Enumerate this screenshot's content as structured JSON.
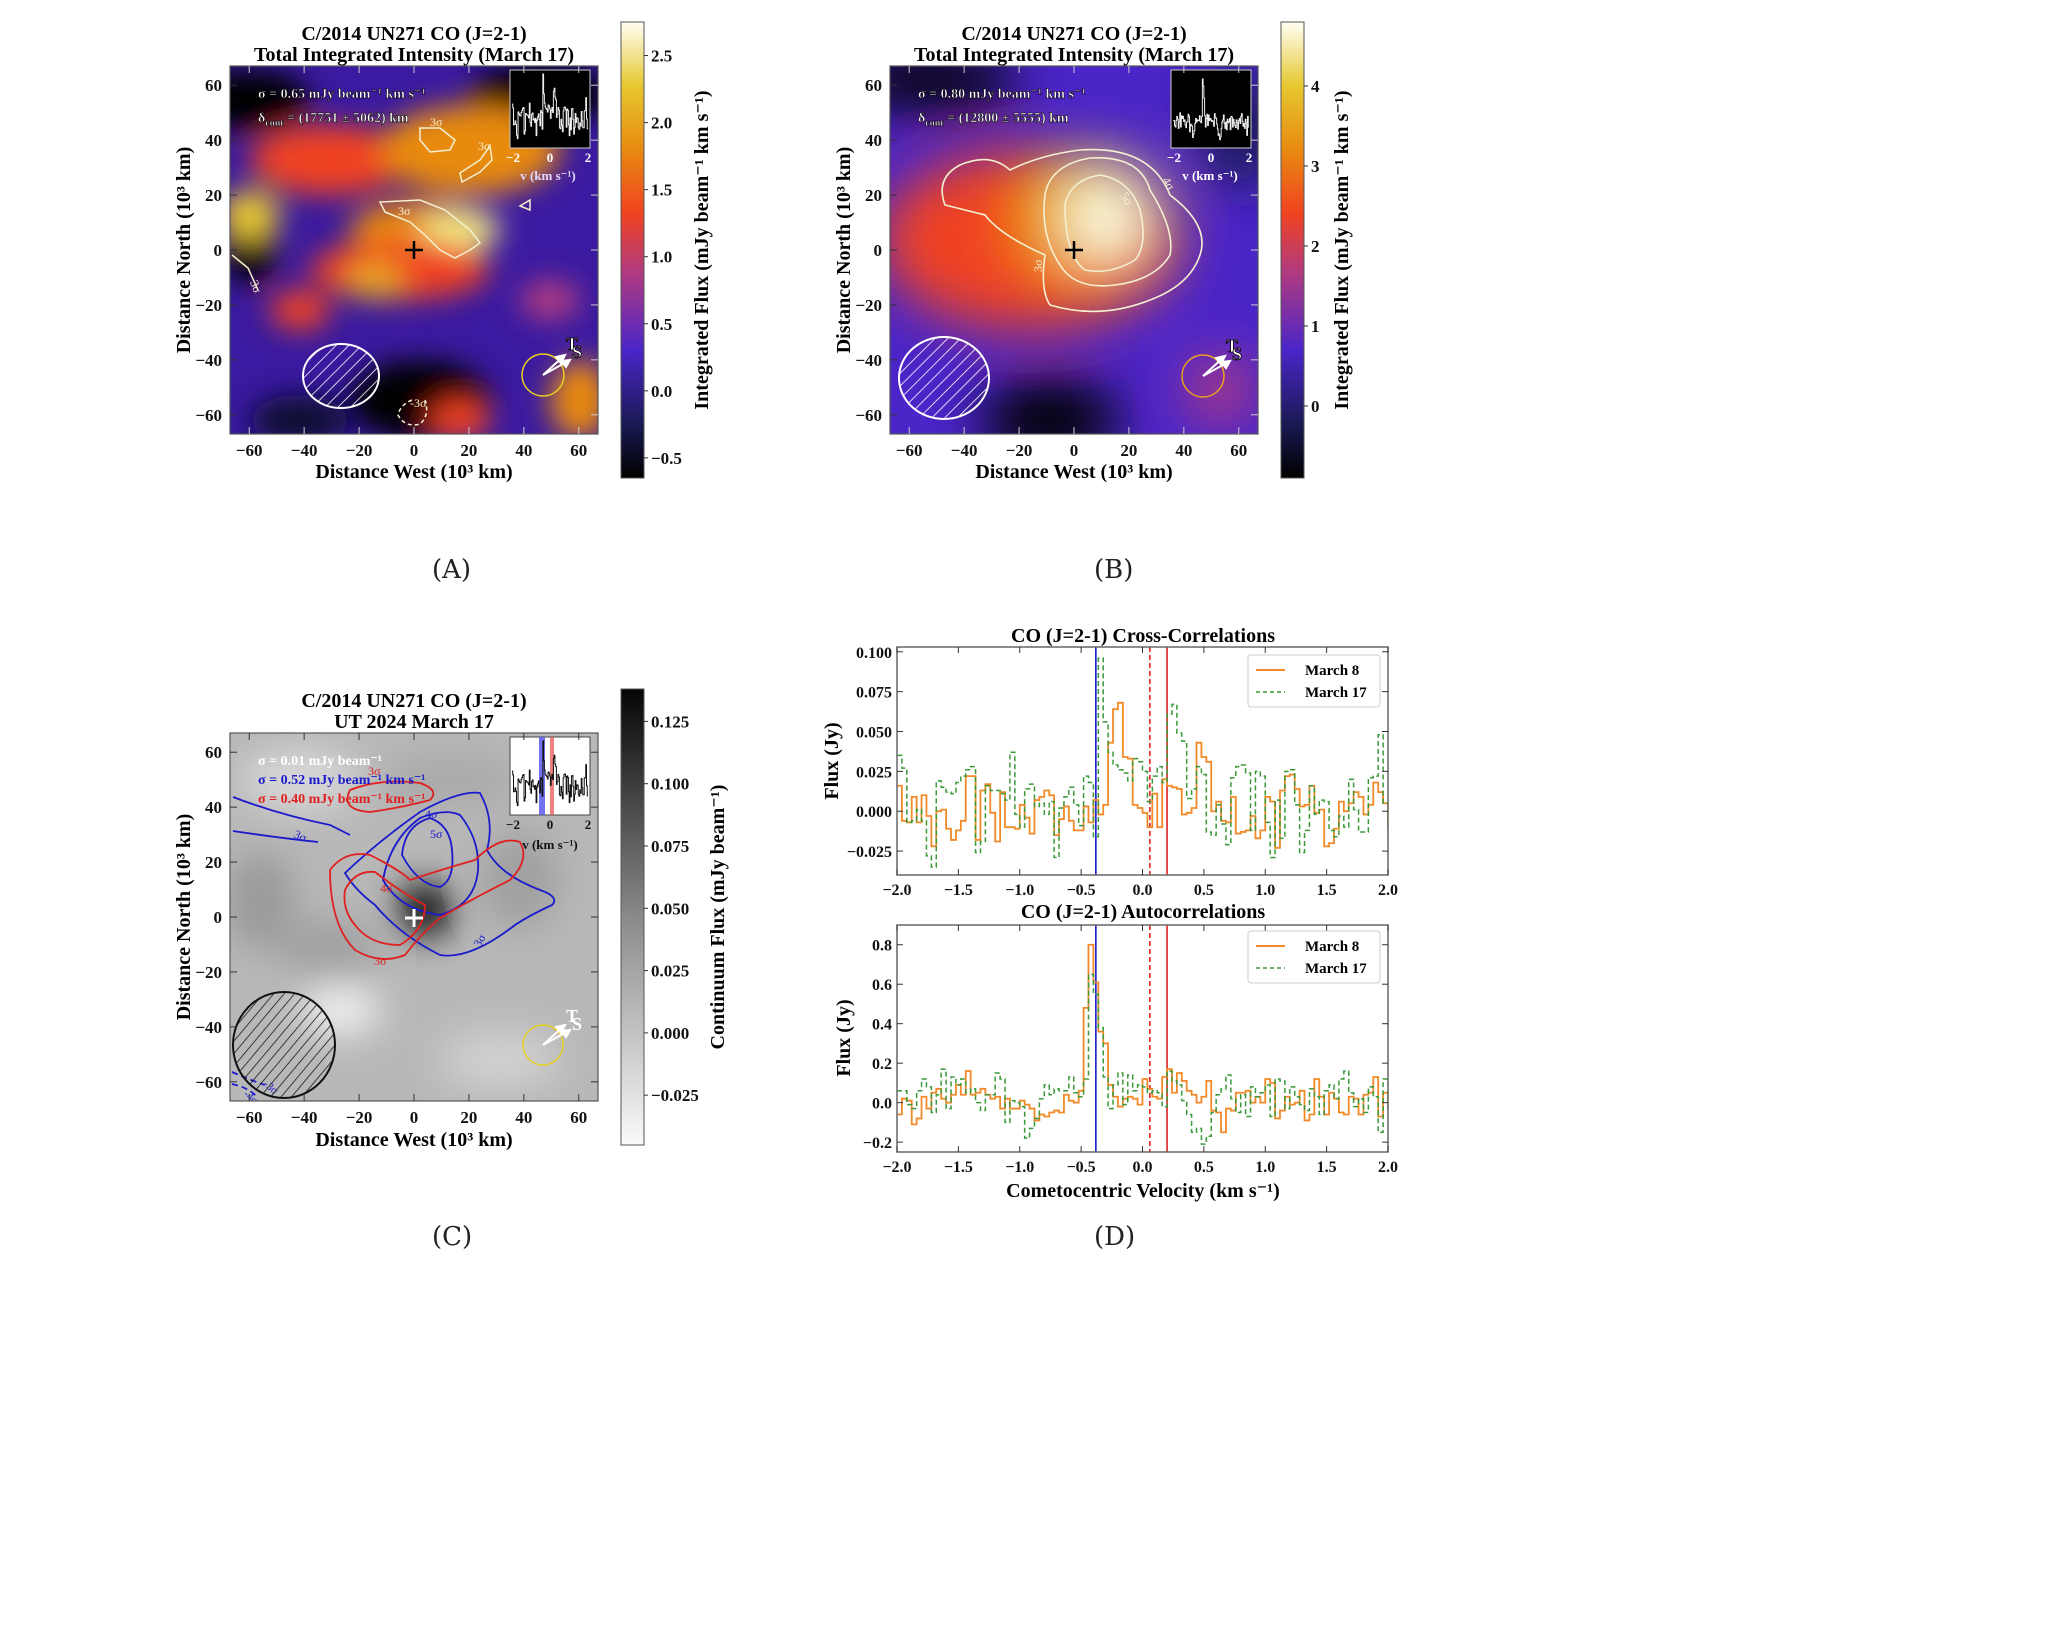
{
  "figure": {
    "captions": [
      "(A)",
      "(B)",
      "(C)",
      "(D)"
    ]
  },
  "panel_a": {
    "title_line1": "C/2014 UN271 CO (J=2-1)",
    "title_line2": "Total Integrated Intensity (March 17)",
    "sigma_text": "σ = 0.65 mJy beam⁻¹ km s⁻¹",
    "delta_text": "δcont = (17751 ± 5062) km",
    "delta_sym": "δ",
    "delta_sub": "cont",
    "delta_val": " = (17751 ± 5062) km",
    "xlabel": "Distance West (10³ km)",
    "ylabel": "Distance North (10³ km)",
    "xticks": [
      "−60",
      "−40",
      "−20",
      "0",
      "20",
      "40",
      "60"
    ],
    "yticks": [
      "60",
      "40",
      "20",
      "0",
      "−20",
      "−40",
      "−60"
    ],
    "colorbar_label": "Integrated Flux (mJy beam⁻¹ km s⁻¹)",
    "colorbar_ticks": [
      "2.5",
      "2.0",
      "1.5",
      "1.0",
      "0.5",
      "0.0",
      "−0.5"
    ],
    "colorbar_range": [
      -0.65,
      2.75
    ],
    "contour_labels": [
      "3σ",
      "3σ",
      "3σ",
      "3σ",
      "-3σ"
    ],
    "inset_xticks": [
      "−2",
      "0",
      "2"
    ],
    "inset_xlabel": "v (km s⁻¹)",
    "direction_labels": [
      "T",
      "S"
    ]
  },
  "panel_b": {
    "title_line1": "C/2014 UN271 CO (J=2-1)",
    "title_line2": "Total Integrated Intensity (March 17)",
    "sigma_text": "σ = 0.80 mJy beam⁻¹ km s⁻¹",
    "delta_sym": "δ",
    "delta_sub": "cont",
    "delta_val": " = (12800 ± 5555) km",
    "xlabel": "Distance West (10³ km)",
    "ylabel": "Distance North (10³ km)",
    "xticks": [
      "−60",
      "−40",
      "−20",
      "0",
      "20",
      "40",
      "60"
    ],
    "yticks": [
      "60",
      "40",
      "20",
      "0",
      "−20",
      "−40",
      "−60"
    ],
    "colorbar_label": "Integrated Flux (mJy beam⁻¹ km s⁻¹)",
    "colorbar_ticks": [
      "4",
      "3",
      "2",
      "1",
      "0"
    ],
    "colorbar_range": [
      -0.9,
      4.8
    ],
    "contour_labels": [
      "3σ",
      "4σ",
      "5σ"
    ],
    "inset_xticks": [
      "−2",
      "0",
      "2"
    ],
    "inset_xlabel": "v (km s⁻¹)",
    "direction_labels": [
      "T",
      "S"
    ]
  },
  "panel_c": {
    "title_line1": "C/2014 UN271 CO (J=2-1)",
    "title_line2": "UT 2024 March 17",
    "sigma_white": "σ = 0.01 mJy beam⁻¹",
    "sigma_blue": "σ = 0.52 mJy beam⁻¹ km s⁻¹",
    "sigma_red": "σ = 0.40 mJy beam⁻¹ km s⁻¹",
    "xlabel": "Distance West (10³ km)",
    "ylabel": "Distance North (10³ km)",
    "xticks": [
      "−60",
      "−40",
      "−20",
      "0",
      "20",
      "40",
      "60"
    ],
    "yticks": [
      "60",
      "40",
      "20",
      "0",
      "−20",
      "−40",
      "−60"
    ],
    "colorbar_label": "Continuum Flux (mJy beam⁻¹)",
    "colorbar_ticks": [
      "0.125",
      "0.100",
      "0.075",
      "0.050",
      "0.025",
      "0.000",
      "−0.025"
    ],
    "colorbar_range": [
      -0.045,
      0.138
    ],
    "blue_contour_labels": [
      "3σ",
      "4σ",
      "5σ",
      "3σ",
      "-3σ",
      "-4σ"
    ],
    "red_contour_labels": [
      "3σ",
      "4σ",
      "3σ"
    ],
    "inset_xticks": [
      "−2",
      "0",
      "2"
    ],
    "inset_xlabel": "v (km s⁻¹)",
    "direction_labels": [
      "T",
      "S"
    ]
  },
  "colors": {
    "march8": "#f28a2a",
    "march17": "#3a9a3a",
    "blue_line": "#1a1acc",
    "red_line": "#e02020",
    "beam_yellow": "#e8d020"
  },
  "chart_data": [
    {
      "type": "line",
      "title": "CO (J=2-1) Cross-Correlations",
      "xlabel": "",
      "ylabel": "Flux (Jy)",
      "xlim": [
        -2.0,
        2.0
      ],
      "ylim": [
        -0.04,
        0.103
      ],
      "xticks": [
        "−2.0",
        "−1.5",
        "−1.0",
        "−0.5",
        "0.0",
        "0.5",
        "1.0",
        "1.5",
        "2.0"
      ],
      "xtick_values": [
        -2.0,
        -1.5,
        -1.0,
        -0.5,
        0.0,
        0.5,
        1.0,
        1.5,
        2.0
      ],
      "yticks": [
        "0.100",
        "0.075",
        "0.050",
        "0.025",
        "0.000",
        "−0.025"
      ],
      "ytick_values": [
        0.1,
        0.075,
        0.05,
        0.025,
        0.0,
        -0.025
      ],
      "legend": [
        "March 8",
        "March 17"
      ],
      "legend_position": "top-right",
      "vlines": [
        {
          "x": -0.38,
          "color": "blue",
          "style": "solid"
        },
        {
          "x": 0.06,
          "color": "red",
          "style": "dashed"
        },
        {
          "x": 0.2,
          "color": "red",
          "style": "solid"
        }
      ],
      "x_start": -2.0,
      "channel_width": 0.04,
      "series": [
        {
          "name": "March 8",
          "style": "solid-step",
          "values": [
            0.016,
            -0.006,
            -0.007,
            0.009,
            -0.007,
            0.01,
            -0.003,
            -0.022,
            0.0,
            0.001,
            -0.011,
            -0.018,
            -0.012,
            -0.006,
            0.022,
            0.022,
            -0.018,
            0.013,
            0.017,
            -0.001,
            -0.019,
            0.012,
            -0.01,
            -0.01,
            -0.011,
            0.004,
            -0.004,
            -0.014,
            0.007,
            0.009,
            0.013,
            0.01,
            -0.015,
            -0.005,
            0.003,
            -0.006,
            -0.012,
            -0.012,
            0.003,
            -0.007,
            0.007,
            -0.002,
            0.004,
            0.043,
            0.064,
            0.068,
            0.034,
            0.033,
            0.004,
            0.002,
            -0.001,
            -0.01,
            0.011,
            -0.01,
            0.02,
            0.016,
            0.015,
            0.014,
            -0.002,
            -0.001,
            0.002,
            0.043,
            0.034,
            0.031,
            0.0,
            0.006,
            -0.006,
            -0.007,
            0.009,
            -0.014,
            -0.013,
            -0.012,
            -0.003,
            -0.017,
            -0.012,
            0.009,
            0.006,
            -0.023,
            0.013,
            0.022,
            0.023,
            0.014,
            0.003,
            0.004,
            0.016,
            -0.001,
            0.001,
            -0.022,
            -0.02,
            -0.011,
            0.006,
            0.0,
            0.005,
            0.012,
            0.009,
            -0.002,
            0.004,
            0.018,
            0.012,
            0.005,
            -0.01
          ]
        },
        {
          "name": "March 17",
          "style": "dashed-step",
          "values": [
            0.035,
            0.027,
            -0.007,
            -0.006,
            0.001,
            -0.006,
            -0.028,
            -0.035,
            0.019,
            0.015,
            0.012,
            0.011,
            0.018,
            0.022,
            0.026,
            0.028,
            -0.026,
            -0.019,
            0.016,
            0.013,
            0.013,
            0.011,
            0.007,
            0.037,
            -0.002,
            -0.01,
            0.014,
            0.017,
            0.003,
            0.005,
            -0.002,
            0.006,
            -0.029,
            0.002,
            0.009,
            0.015,
            0.004,
            -0.009,
            0.022,
            0.018,
            -0.016,
            0.096,
            0.056,
            0.037,
            0.029,
            0.026,
            0.024,
            0.019,
            0.033,
            0.031,
            0.025,
            0.006,
            0.022,
            0.028,
            0.018,
            0.061,
            0.067,
            0.049,
            0.044,
            0.008,
            0.014,
            0.028,
            0.023,
            -0.013,
            -0.015,
            0.004,
            -0.008,
            -0.021,
            0.021,
            0.028,
            0.029,
            0.024,
            -0.012,
            0.025,
            0.022,
            -0.007,
            -0.029,
            0.007,
            -0.017,
            0.025,
            0.026,
            0.004,
            -0.026,
            -0.012,
            0.016,
            -0.002,
            0.007,
            0.006,
            -0.012,
            -0.016,
            -0.003,
            -0.01,
            0.02,
            0.001,
            -0.013,
            -0.013,
            0.021,
            0.022,
            0.048,
            0.005,
            -0.015
          ]
        }
      ]
    },
    {
      "type": "line",
      "title": "CO (J=2-1) Autocorrelations",
      "xlabel": "Cometocentric Velocity (km s⁻¹)",
      "ylabel": "Flux (Jy)",
      "xlim": [
        -2.0,
        2.0
      ],
      "ylim": [
        -0.25,
        0.9
      ],
      "xticks": [
        "−2.0",
        "−1.5",
        "−1.0",
        "−0.5",
        "0.0",
        "0.5",
        "1.0",
        "1.5",
        "2.0"
      ],
      "xtick_values": [
        -2.0,
        -1.5,
        -1.0,
        -0.5,
        0.0,
        0.5,
        1.0,
        1.5,
        2.0
      ],
      "yticks": [
        "0.8",
        "0.6",
        "0.4",
        "0.2",
        "0.0",
        "−0.2"
      ],
      "ytick_values": [
        0.8,
        0.6,
        0.4,
        0.2,
        0.0,
        -0.2
      ],
      "legend": [
        "March 8",
        "March 17"
      ],
      "legend_position": "top-right",
      "vlines": [
        {
          "x": -0.38,
          "color": "blue",
          "style": "solid"
        },
        {
          "x": 0.06,
          "color": "red",
          "style": "dashed"
        },
        {
          "x": 0.2,
          "color": "red",
          "style": "solid"
        }
      ],
      "x_start": -2.0,
      "channel_width": 0.04,
      "series": [
        {
          "name": "March 8",
          "style": "solid-step",
          "values": [
            -0.06,
            0.02,
            0.01,
            -0.11,
            -0.08,
            0.03,
            -0.03,
            0.05,
            0.07,
            0.02,
            0.0,
            0.04,
            0.09,
            0.04,
            0.16,
            0.04,
            0.05,
            0.07,
            0.04,
            0.02,
            0.03,
            -0.03,
            0.02,
            -0.03,
            -0.03,
            0.01,
            -0.01,
            -0.03,
            -0.09,
            -0.06,
            -0.07,
            -0.05,
            -0.04,
            -0.05,
            0.04,
            0.01,
            0.0,
            0.06,
            0.48,
            0.8,
            0.61,
            0.36,
            0.3,
            0.09,
            0.03,
            -0.02,
            0.02,
            0.03,
            0.02,
            -0.01,
            0.12,
            0.07,
            0.03,
            0.02,
            0.13,
            0.17,
            0.05,
            0.15,
            0.11,
            0.06,
            0.04,
            0.0,
            0.03,
            0.11,
            -0.04,
            -0.05,
            -0.15,
            -0.03,
            -0.04,
            0.05,
            0.05,
            0.06,
            0.0,
            0.03,
            0.0,
            0.12,
            0.1,
            -0.08,
            -0.04,
            0.03,
            -0.01,
            0.0,
            0.06,
            -0.09,
            -0.06,
            0.12,
            0.03,
            -0.06,
            0.05,
            0.02,
            -0.05,
            -0.06,
            0.03,
            0.02,
            -0.06,
            0.04,
            0.05,
            0.13,
            -0.07,
            0.05,
            -0.03
          ]
        },
        {
          "name": "March 17",
          "style": "dashed-step",
          "values": [
            0.06,
            0.06,
            -0.01,
            -0.03,
            0.06,
            0.12,
            0.08,
            -0.05,
            0.04,
            0.17,
            -0.03,
            0.13,
            0.09,
            0.12,
            0.05,
            0.07,
            0.0,
            -0.04,
            0.04,
            0.04,
            0.15,
            0.12,
            -0.1,
            0.01,
            0.0,
            -0.02,
            -0.18,
            -0.13,
            -0.08,
            0.02,
            0.09,
            0.04,
            0.07,
            0.06,
            0.06,
            0.13,
            0.05,
            0.03,
            0.12,
            0.65,
            0.55,
            0.38,
            0.13,
            -0.03,
            0.09,
            0.15,
            -0.01,
            0.14,
            0.06,
            0.09,
            0.08,
            0.05,
            0.06,
            0.05,
            -0.02,
            0.16,
            0.11,
            0.09,
            0.01,
            -0.06,
            -0.15,
            -0.13,
            -0.21,
            -0.17,
            -0.05,
            0.04,
            0.07,
            0.14,
            0.02,
            -0.05,
            0.04,
            -0.07,
            0.08,
            0.03,
            0.05,
            0.09,
            -0.07,
            0.12,
            0.11,
            -0.03,
            0.08,
            0.03,
            -0.01,
            -0.04,
            0.07,
            0.03,
            -0.06,
            0.06,
            0.09,
            0.02,
            0.12,
            0.16,
            0.05,
            -0.02,
            0.02,
            -0.05,
            0.08,
            0.03,
            -0.15,
            0.12,
            -0.03
          ]
        }
      ]
    }
  ]
}
